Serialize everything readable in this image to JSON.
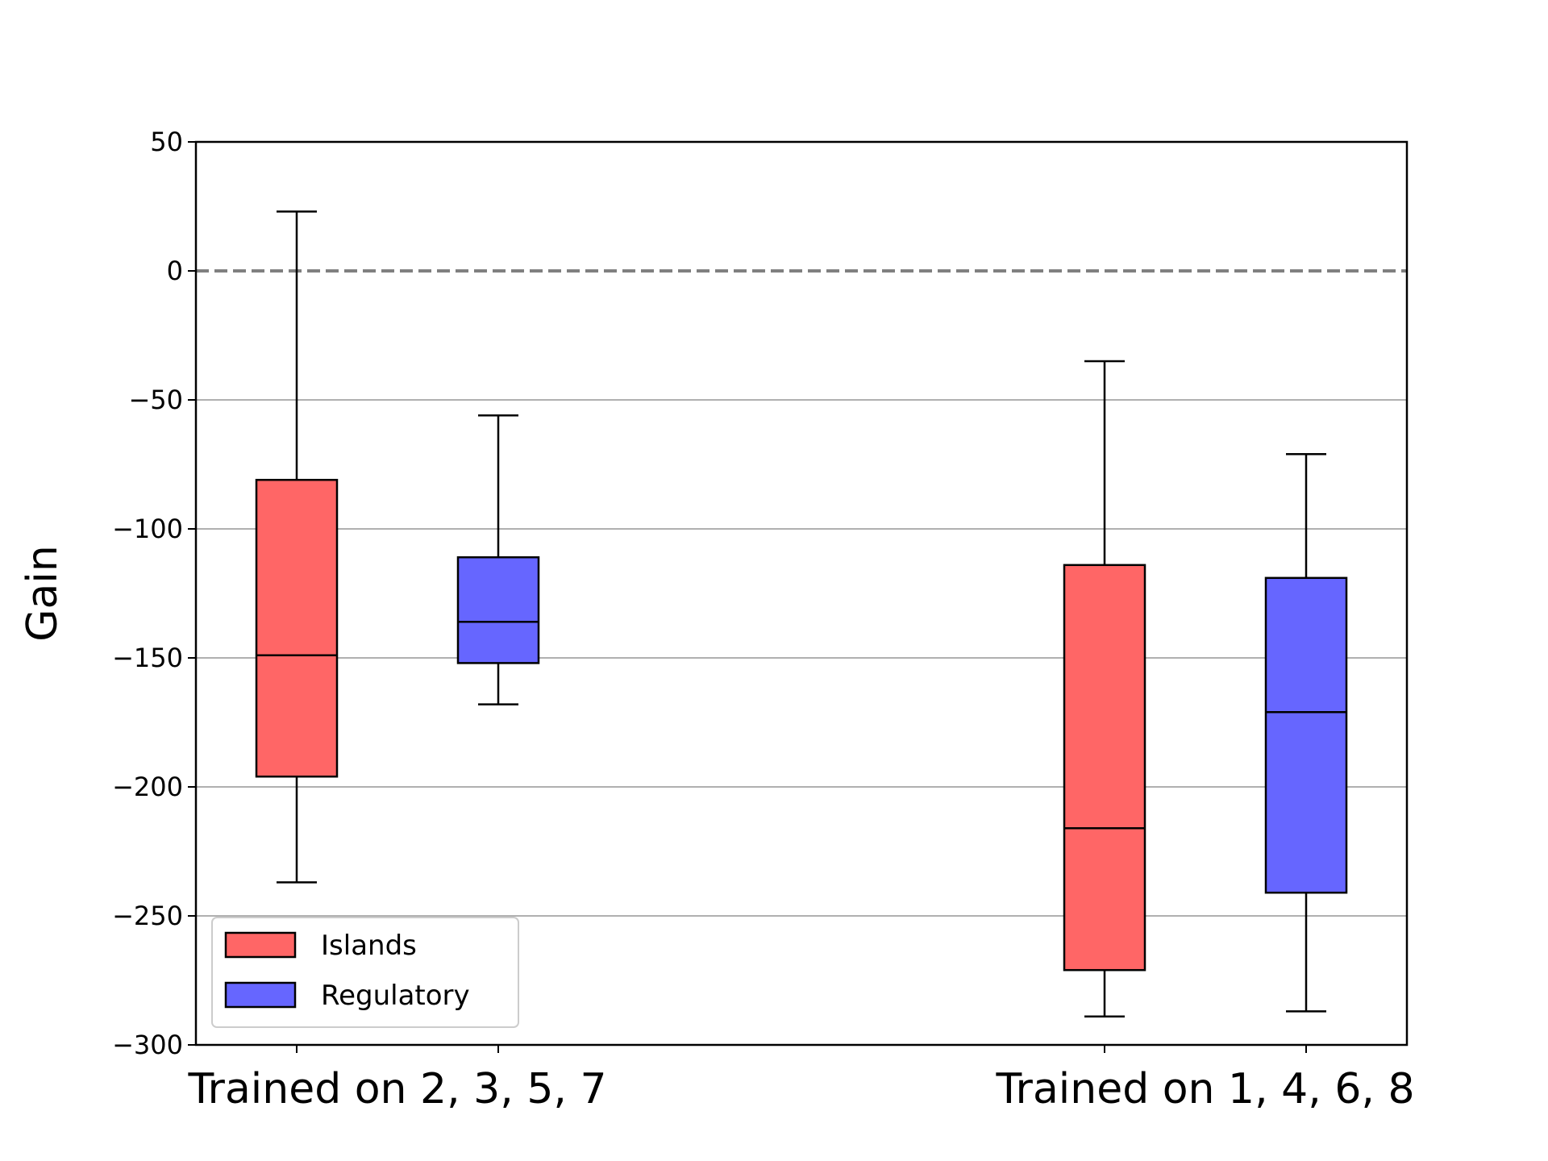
{
  "chart_data": {
    "type": "box",
    "title": "",
    "xlabel": "",
    "ylabel": "Gain",
    "ylim": [
      -300,
      50
    ],
    "yticks": [
      50,
      0,
      -50,
      -100,
      -150,
      -200,
      -250,
      -300
    ],
    "ytick_labels": [
      "50",
      "0",
      "−50",
      "−100",
      "−150",
      "−200",
      "−250",
      "−300"
    ],
    "grid": "horizontal",
    "reference_line": {
      "y": 0,
      "style": "dashed",
      "color": "#808080"
    },
    "legend_position": "lower-left",
    "categories": [
      "Trained on 2, 3, 5, 7",
      "Trained on 1, 4, 6, 8"
    ],
    "series": [
      {
        "name": "Islands",
        "color": "#ff6666",
        "boxes": [
          {
            "whisker_low": -237,
            "q1": -196,
            "median": -149,
            "q3": -81,
            "whisker_high": 23
          },
          {
            "whisker_low": -289,
            "q1": -271,
            "median": -216,
            "q3": -114,
            "whisker_high": -35
          }
        ]
      },
      {
        "name": "Regulatory",
        "color": "#6666ff",
        "boxes": [
          {
            "whisker_low": -168,
            "q1": -152,
            "median": -136,
            "q3": -111,
            "whisker_high": -56
          },
          {
            "whisker_low": -287,
            "q1": -241,
            "median": -171,
            "q3": -119,
            "whisker_high": -71
          }
        ]
      }
    ]
  }
}
